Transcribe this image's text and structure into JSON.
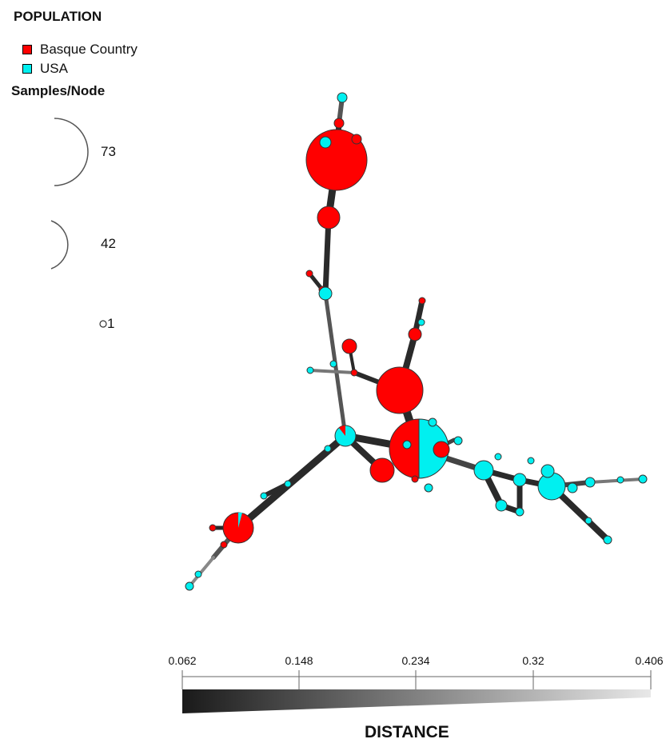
{
  "legend": {
    "title": "POPULATION",
    "entries": [
      {
        "label": "Basque Country",
        "color": "#ff0000"
      },
      {
        "label": "USA",
        "color": "#00f0f0"
      }
    ]
  },
  "size_legend": {
    "title": "Samples/Node",
    "labels": [
      "73",
      "42",
      "1"
    ]
  },
  "distance_scale": {
    "ticks": [
      "0.062",
      "0.148",
      "0.234",
      "0.32",
      "0.406"
    ],
    "title": "DISTANCE",
    "gradient": [
      "#1a1a1a",
      "#e8e8e8"
    ]
  }
}
